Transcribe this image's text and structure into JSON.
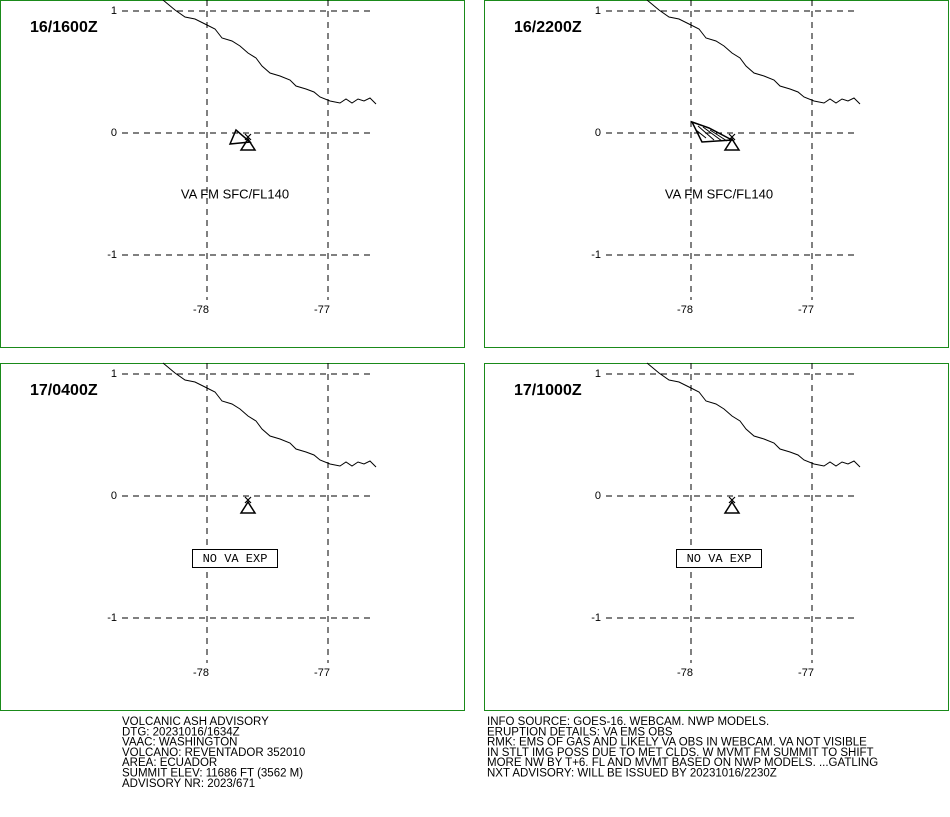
{
  "panels": [
    {
      "time": "16/1600Z",
      "annotation": "VA FM SFC/FL140"
    },
    {
      "time": "16/2200Z",
      "annotation": "VA FM SFC/FL140"
    },
    {
      "time": "17/0400Z",
      "annotation_box": "NO VA EXP"
    },
    {
      "time": "17/1000Z",
      "annotation_box": "NO VA EXP"
    }
  ],
  "grid": {
    "lat_labels": [
      "1",
      "0",
      "-1"
    ],
    "lon_labels": [
      "-78",
      "-77"
    ]
  },
  "footer": {
    "left": [
      "VOLCANIC ASH ADVISORY",
      "DTG: 20231016/1634Z",
      "VAAC: WASHINGTON",
      "VOLCANO: REVENTADOR 352010",
      "AREA: ECUADOR",
      "SUMMIT ELEV: 11686 FT (3562 M)",
      "ADVISORY NR: 2023/671"
    ],
    "right": [
      "INFO SOURCE: GOES-16. WEBCAM. NWP MODELS.",
      "ERUPTION DETAILS: VA EMS OBS",
      "RMK: EMS OF GAS AND LIKELY VA OBS IN WEBCAM. VA NOT VISIBLE",
      "IN STLT IMG POSS DUE TO MET CLDS. W MVMT FM SUMMIT TO SHIFT",
      "MORE NW BY T+6. FL AND MVMT BASED ON NWP MODELS. ...GATLING",
      "NXT ADVISORY: WILL BE ISSUED BY 20231016/2230Z"
    ]
  }
}
